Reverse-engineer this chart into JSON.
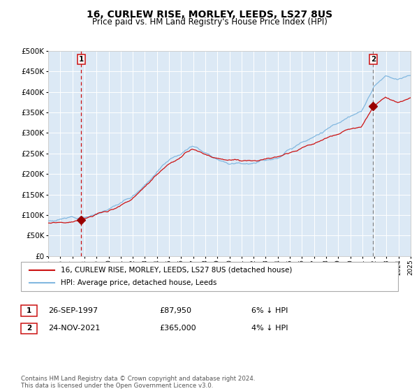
{
  "title": "16, CURLEW RISE, MORLEY, LEEDS, LS27 8US",
  "subtitle": "Price paid vs. HM Land Registry's House Price Index (HPI)",
  "background_color": "#dce9f5",
  "grid_color": "#ffffff",
  "hpi_color": "#82b8e0",
  "price_color": "#cc1111",
  "marker_color": "#990000",
  "vline1_color": "#cc1111",
  "vline2_color": "#888888",
  "ylim": [
    0,
    500000
  ],
  "yticks": [
    0,
    50000,
    100000,
    150000,
    200000,
    250000,
    300000,
    350000,
    400000,
    450000,
    500000
  ],
  "sale1_x": 1997.73,
  "sale1_y": 87950,
  "sale1_label": "1",
  "sale2_x": 2021.9,
  "sale2_y": 365000,
  "sale2_label": "2",
  "legend_line1": "16, CURLEW RISE, MORLEY, LEEDS, LS27 8US (detached house)",
  "legend_line2": "HPI: Average price, detached house, Leeds",
  "note1_num": "1",
  "note1_date": "26-SEP-1997",
  "note1_price": "£87,950",
  "note1_hpi": "6% ↓ HPI",
  "note2_num": "2",
  "note2_date": "24-NOV-2021",
  "note2_price": "£365,000",
  "note2_hpi": "4% ↓ HPI",
  "footer": "Contains HM Land Registry data © Crown copyright and database right 2024.\nThis data is licensed under the Open Government Licence v3.0.",
  "xstart": 1995,
  "xend": 2025,
  "xticks": [
    1995,
    1996,
    1997,
    1998,
    1999,
    2000,
    2001,
    2002,
    2003,
    2004,
    2005,
    2006,
    2007,
    2008,
    2009,
    2010,
    2011,
    2012,
    2013,
    2014,
    2015,
    2016,
    2017,
    2018,
    2019,
    2020,
    2021,
    2022,
    2023,
    2024,
    2025
  ]
}
